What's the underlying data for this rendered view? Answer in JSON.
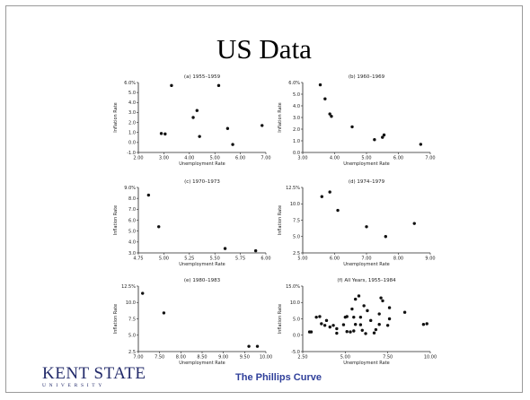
{
  "slide": {
    "title": "US Data",
    "footer": "The Phillips Curve",
    "logo": {
      "main": "KENT STATE",
      "sub": "UNIVERSITY"
    }
  },
  "chart_data": [
    {
      "type": "scatter",
      "title": "(a) 1955–1959",
      "xlabel": "Unemployment Rate",
      "ylabel": "Inflation Rate",
      "xlim": [
        2.0,
        7.0
      ],
      "ylim": [
        -1.0,
        6.0
      ],
      "xticks": [
        "2.00",
        "3.00",
        "4.00",
        "5.00",
        "6.00",
        "7.00"
      ],
      "yticks": [
        "-1.0",
        "0.0",
        "1.0",
        "2.0",
        "3.0",
        "4.0",
        "5.0",
        "6.0%"
      ],
      "points": [
        [
          2.9,
          0.9
        ],
        [
          3.05,
          0.85
        ],
        [
          3.3,
          5.7
        ],
        [
          4.15,
          2.5
        ],
        [
          4.3,
          3.2
        ],
        [
          4.4,
          0.6
        ],
        [
          5.15,
          5.7
        ],
        [
          5.5,
          1.4
        ],
        [
          5.7,
          -0.2
        ],
        [
          6.85,
          1.7
        ]
      ]
    },
    {
      "type": "scatter",
      "title": "(b) 1960–1969",
      "xlabel": "Unemployment Rate",
      "ylabel": "Inflation Rate",
      "xlim": [
        3.0,
        7.0
      ],
      "ylim": [
        0.0,
        6.0
      ],
      "xticks": [
        "3.00",
        "4.00",
        "5.00",
        "6.00",
        "7.00"
      ],
      "yticks": [
        "0.0",
        "1.0",
        "2.0",
        "3.0",
        "4.0",
        "5.0",
        "6.0%"
      ],
      "points": [
        [
          3.55,
          5.8
        ],
        [
          3.7,
          4.6
        ],
        [
          3.85,
          3.3
        ],
        [
          3.9,
          3.1
        ],
        [
          4.55,
          2.2
        ],
        [
          5.25,
          1.1
        ],
        [
          5.5,
          1.3
        ],
        [
          5.55,
          1.5
        ],
        [
          6.7,
          0.7
        ]
      ]
    },
    {
      "type": "scatter",
      "title": "(c) 1970–1973",
      "xlabel": "Unemployment Rate",
      "ylabel": "Inflation Rate",
      "xlim": [
        4.75,
        6.0
      ],
      "ylim": [
        3.0,
        9.0
      ],
      "xticks": [
        "4.75",
        "5.00",
        "5.25",
        "5.50",
        "5.75",
        "6.00"
      ],
      "yticks": [
        "3.0",
        "4.0",
        "5.0",
        "6.0",
        "7.0",
        "8.0",
        "9.0%"
      ],
      "points": [
        [
          4.85,
          8.3
        ],
        [
          4.95,
          5.4
        ],
        [
          5.6,
          3.4
        ],
        [
          5.9,
          3.2
        ]
      ]
    },
    {
      "type": "scatter",
      "title": "(d) 1974–1979",
      "xlabel": "Unemployment Rate",
      "ylabel": "Inflation Rate",
      "xlim": [
        5.0,
        9.0
      ],
      "ylim": [
        2.5,
        12.5
      ],
      "xticks": [
        "5.00",
        "6.00",
        "7.00",
        "8.00",
        "9.00"
      ],
      "yticks": [
        "2.5",
        "5.0",
        "7.5",
        "10.0",
        "12.5%"
      ],
      "points": [
        [
          5.6,
          11.1
        ],
        [
          5.85,
          11.8
        ],
        [
          6.1,
          9.0
        ],
        [
          7.0,
          6.5
        ],
        [
          7.6,
          5.0
        ],
        [
          8.5,
          7.0
        ]
      ]
    },
    {
      "type": "scatter",
      "title": "(e) 1980–1983",
      "xlabel": "Unemployment Rate",
      "ylabel": "Inflation Rate",
      "xlim": [
        7.0,
        10.0
      ],
      "ylim": [
        2.5,
        12.5
      ],
      "xticks": [
        "7.00",
        "7.50",
        "8.00",
        "8.50",
        "9.00",
        "9.50",
        "10.00"
      ],
      "yticks": [
        "2.5",
        "5.0",
        "7.5",
        "10.0",
        "12.5%"
      ],
      "points": [
        [
          7.1,
          11.4
        ],
        [
          7.6,
          8.4
        ],
        [
          9.6,
          3.3
        ],
        [
          9.8,
          3.3
        ]
      ]
    },
    {
      "type": "scatter",
      "title": "(f) All Years, 1955–1984",
      "xlabel": "Unemployment Rate",
      "ylabel": "Inflation Rate",
      "xlim": [
        2.5,
        10.0
      ],
      "ylim": [
        -5.0,
        15.0
      ],
      "xticks": [
        "2.50",
        "5.00",
        "7.50",
        "10.00"
      ],
      "yticks": [
        "-5.0",
        "0.0",
        "5.0",
        "10.0",
        "15.0%"
      ],
      "points": [
        [
          2.9,
          1.0
        ],
        [
          3.0,
          1.0
        ],
        [
          3.3,
          5.5
        ],
        [
          3.5,
          5.7
        ],
        [
          3.6,
          3.5
        ],
        [
          3.8,
          3.0
        ],
        [
          3.9,
          4.5
        ],
        [
          4.1,
          2.5
        ],
        [
          4.3,
          3.0
        ],
        [
          4.5,
          2.0
        ],
        [
          4.5,
          0.6
        ],
        [
          4.9,
          3.2
        ],
        [
          5.0,
          5.5
        ],
        [
          5.1,
          5.7
        ],
        [
          5.1,
          1.1
        ],
        [
          5.3,
          1.0
        ],
        [
          5.4,
          8.0
        ],
        [
          5.5,
          1.3
        ],
        [
          5.5,
          5.5
        ],
        [
          5.6,
          11.0
        ],
        [
          5.6,
          3.3
        ],
        [
          5.8,
          12.0
        ],
        [
          5.9,
          3.2
        ],
        [
          5.9,
          5.5
        ],
        [
          6.0,
          1.5
        ],
        [
          6.1,
          9.0
        ],
        [
          6.2,
          0.5
        ],
        [
          6.3,
          7.5
        ],
        [
          6.5,
          4.5
        ],
        [
          6.7,
          0.7
        ],
        [
          6.8,
          1.7
        ],
        [
          7.0,
          6.5
        ],
        [
          7.0,
          3.3
        ],
        [
          7.1,
          11.4
        ],
        [
          7.2,
          10.5
        ],
        [
          7.6,
          5.0
        ],
        [
          7.6,
          8.4
        ],
        [
          7.5,
          3.0
        ],
        [
          8.5,
          7.0
        ],
        [
          9.6,
          3.3
        ],
        [
          9.8,
          3.5
        ]
      ]
    }
  ]
}
